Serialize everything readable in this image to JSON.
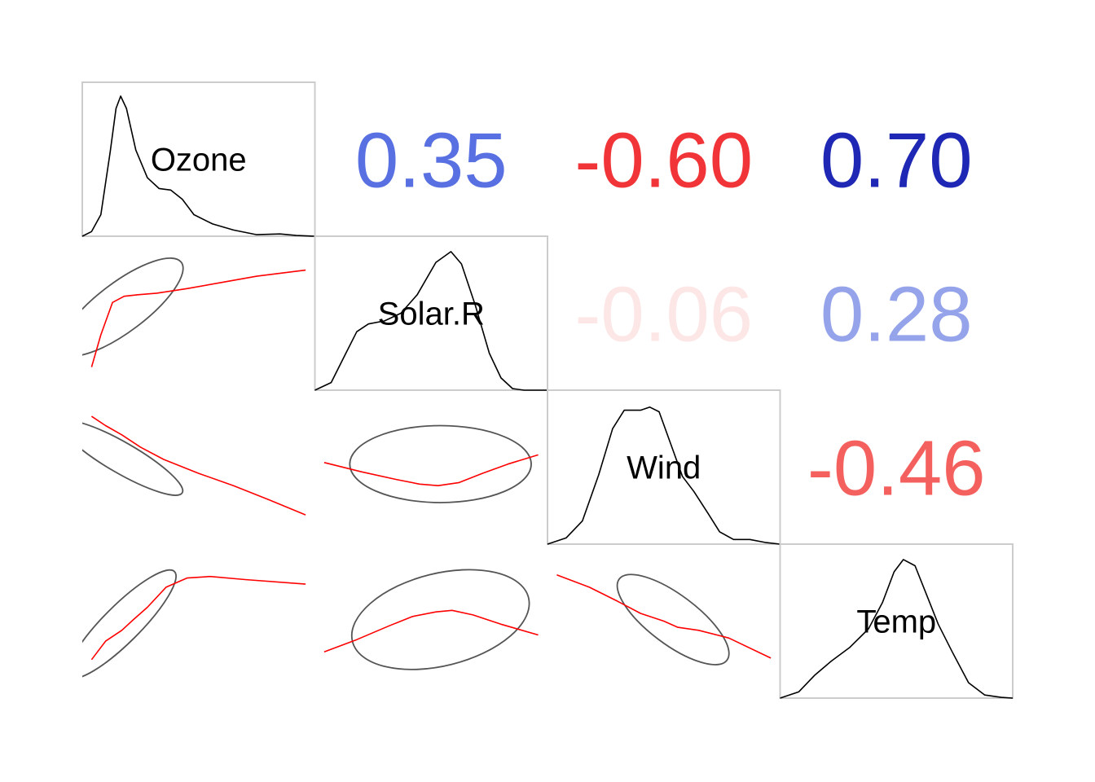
{
  "chart_data": {
    "type": "scatter",
    "variables": [
      "Ozone",
      "Solar.R",
      "Wind",
      "Temp"
    ],
    "correlations": [
      {
        "row": 0,
        "col": 1,
        "label": "0.35",
        "value": 0.35,
        "color": "#5870e2"
      },
      {
        "row": 0,
        "col": 2,
        "label": "-0.60",
        "value": -0.6,
        "color": "#f13438"
      },
      {
        "row": 0,
        "col": 3,
        "label": "0.70",
        "value": 0.7,
        "color": "#1e28b4"
      },
      {
        "row": 1,
        "col": 2,
        "label": "-0.06",
        "value": -0.06,
        "color": "#fde6e6"
      },
      {
        "row": 1,
        "col": 3,
        "label": "0.28",
        "value": 0.28,
        "color": "#95a4ea"
      },
      {
        "row": 2,
        "col": 3,
        "label": "-0.46",
        "value": -0.46,
        "color": "#f4605e"
      }
    ],
    "colors": {
      "density_line": "#000000",
      "ellipse": "#555555",
      "smooth_line": "#ff0000",
      "panel_border": "#cccccc"
    },
    "diagonal": "density",
    "lower_panels": "correlation ellipse with smoothed line",
    "upper_panels": "correlation coefficient text"
  }
}
